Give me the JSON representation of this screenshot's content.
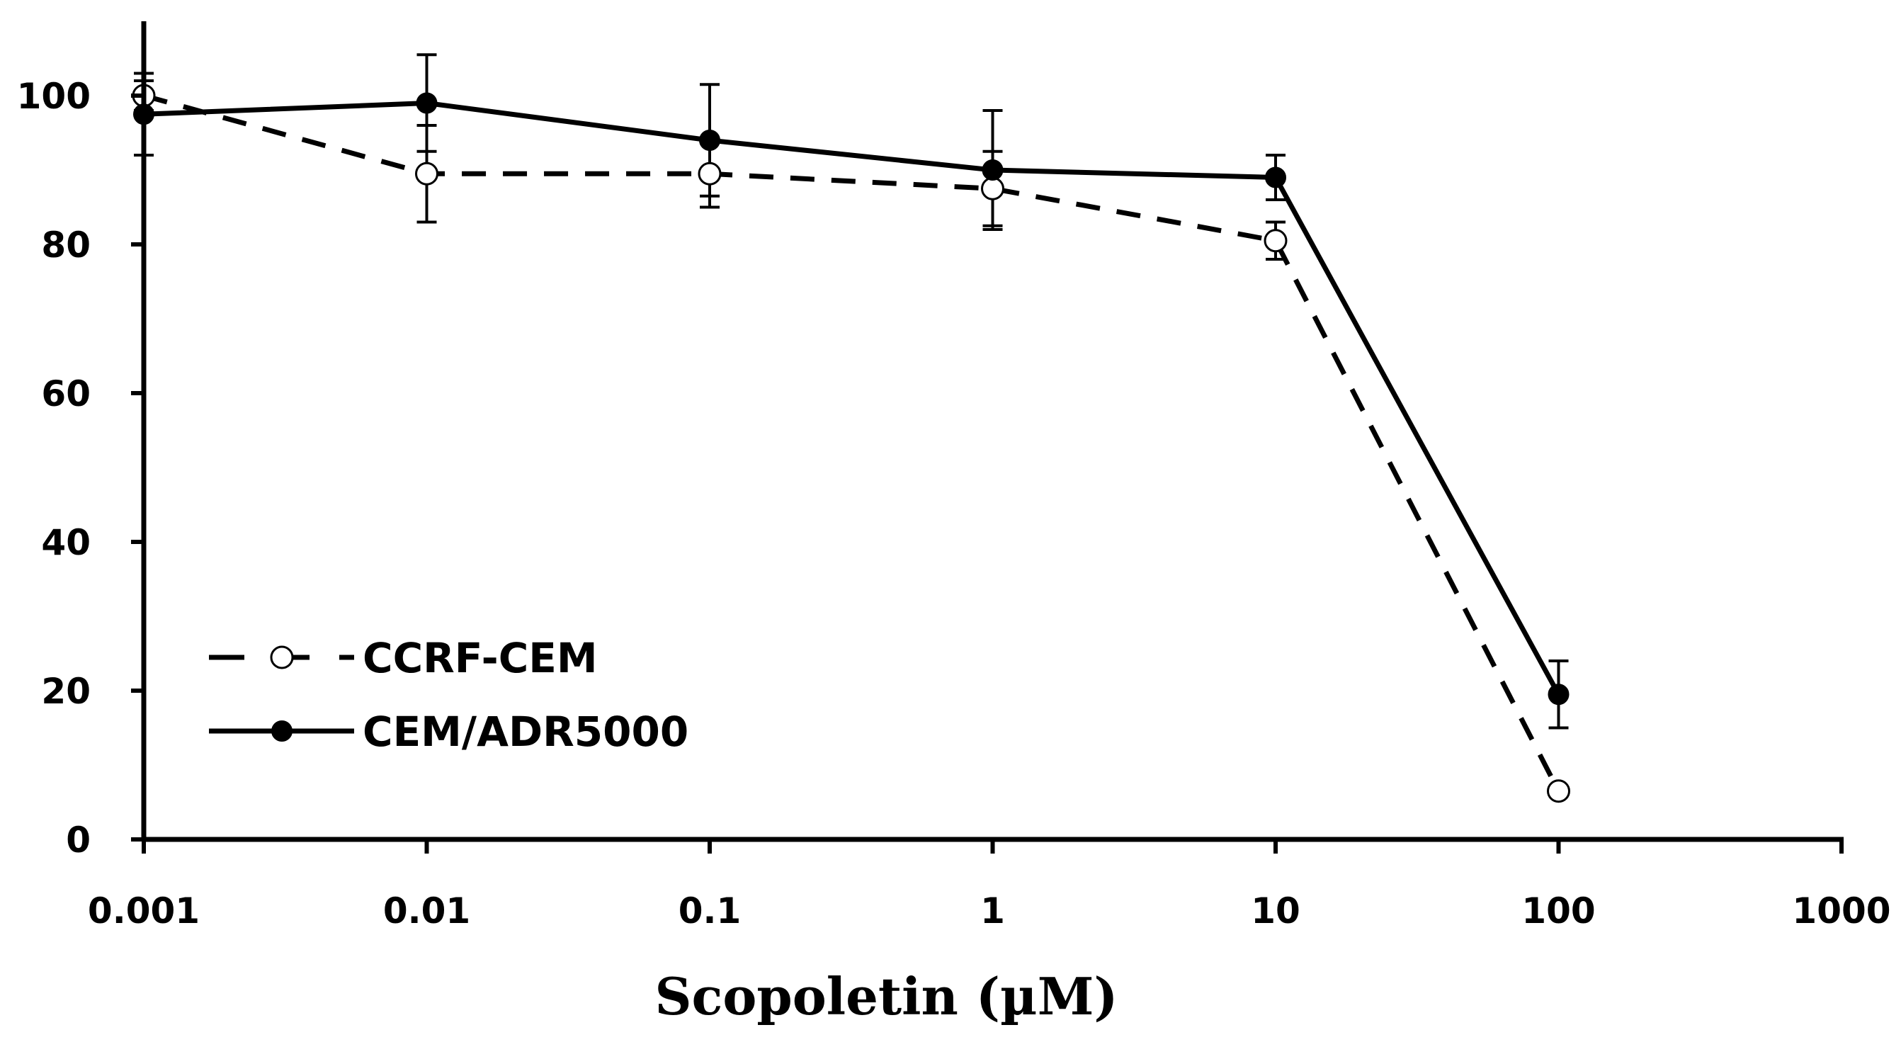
{
  "chart_data": {
    "type": "line",
    "title": "",
    "xlabel": "Scopoletin (µM)",
    "ylabel": "",
    "xscale": "log",
    "x_ticks": [
      0.001,
      0.01,
      0.1,
      1,
      10,
      100,
      1000
    ],
    "x_tick_labels": [
      "0.001",
      "0.01",
      "0.1",
      "1",
      "10",
      "100",
      "1000"
    ],
    "y_ticks": [
      0,
      20,
      40,
      60,
      80,
      100
    ],
    "y_tick_labels": [
      "0",
      "20",
      "40",
      "60",
      "80",
      "100"
    ],
    "xlim": [
      0.001,
      1000
    ],
    "ylim": [
      0,
      110
    ],
    "grid": false,
    "legend_position": "lower-left",
    "x": [
      0.001,
      0.01,
      0.1,
      1,
      10,
      100
    ],
    "series": [
      {
        "name": "CCRF-CEM",
        "line_style": "dashed",
        "marker": "open-circle",
        "color": "#000000",
        "values": [
          100,
          89.5,
          89.5,
          87.5,
          80.5,
          6.5
        ],
        "errors": [
          2,
          6.5,
          4.5,
          5,
          2.5,
          0
        ]
      },
      {
        "name": "CEM/ADR5000",
        "line_style": "solid",
        "marker": "filled-circle",
        "color": "#000000",
        "values": [
          97.5,
          99,
          94,
          90,
          89,
          19.5
        ],
        "errors": [
          5.5,
          6.5,
          7.5,
          8,
          3,
          4.5
        ]
      }
    ]
  }
}
